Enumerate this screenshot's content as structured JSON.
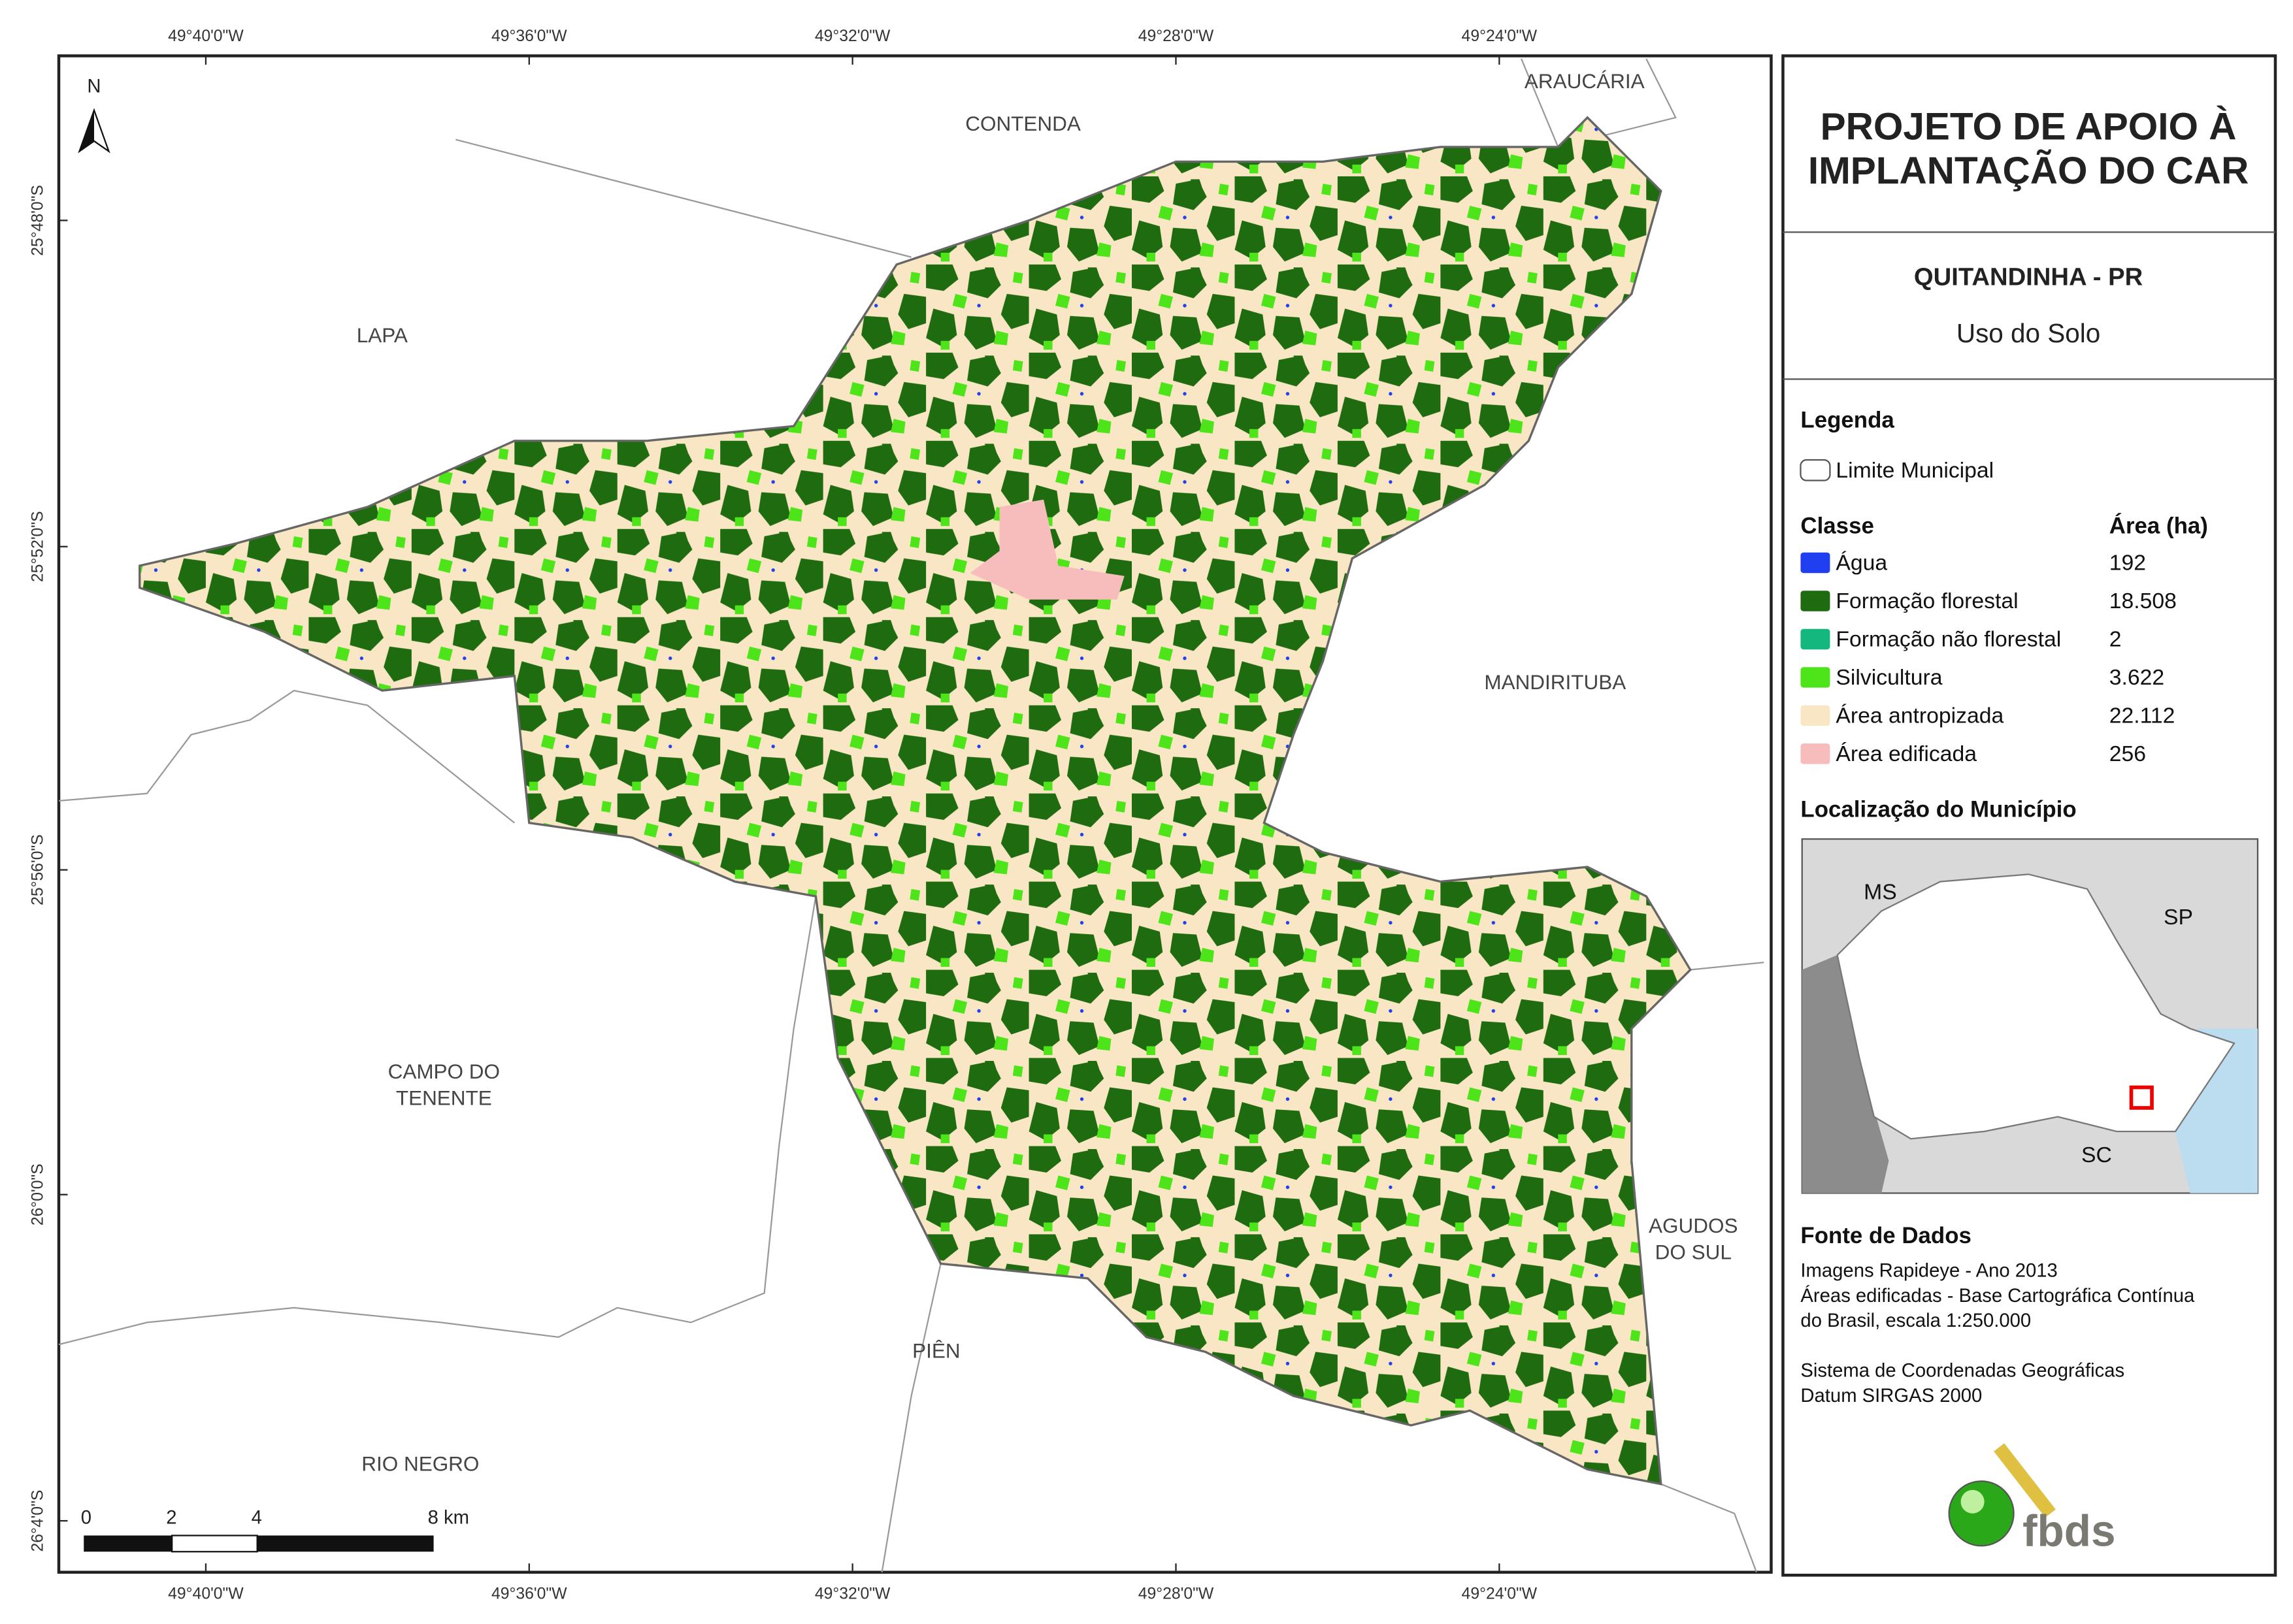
{
  "header": {
    "title_lines": [
      "PROJETO DE APOIO À",
      "IMPLANTAÇÃO DO CAR"
    ],
    "municipality": "QUITANDINHA - PR",
    "subtitle": "Uso do Solo"
  },
  "legend": {
    "title": "Legenda",
    "boundary": "Limite Municipal",
    "class_header": "Classe",
    "area_header": "Área (ha)",
    "classes": [
      {
        "name": "Água",
        "area": "192",
        "color": "#1f3ff0"
      },
      {
        "name": "Formação florestal",
        "area": "18.508",
        "color": "#1e6b10"
      },
      {
        "name": "Formação não florestal",
        "area": "2",
        "color": "#14b87f"
      },
      {
        "name": "Silvicultura",
        "area": "3.622",
        "color": "#4de41a"
      },
      {
        "name": "Área antropizada",
        "area": "22.112",
        "color": "#f8e6c4"
      },
      {
        "name": "Área edificada",
        "area": "256",
        "color": "#f7bcbc"
      }
    ]
  },
  "location": {
    "title": "Localização do Município",
    "labels": [
      "MS",
      "SP",
      "SC"
    ]
  },
  "sources": {
    "title": "Fonte de Dados",
    "lines": [
      "Imagens Rapideye - Ano 2013",
      "Áreas edificadas - Base Cartográfica Contínua",
      "do Brasil, escala 1:250.000",
      "",
      "Sistema de Coordenadas Geográficas",
      "Datum SIRGAS 2000"
    ]
  },
  "map": {
    "north": "N",
    "neighbors": [
      {
        "lines": [
          "CONTENDA"
        ]
      },
      {
        "lines": [
          "ARAUCÁRIA"
        ]
      },
      {
        "lines": [
          "LAPA"
        ]
      },
      {
        "lines": [
          "MANDIRITUBA"
        ]
      },
      {
        "lines": [
          "CAMPO DO",
          "TENENTE"
        ]
      },
      {
        "lines": [
          "AGUDOS",
          "DO SUL"
        ]
      },
      {
        "lines": [
          "PIÊN"
        ]
      },
      {
        "lines": [
          "RIO NEGRO"
        ]
      }
    ],
    "lon_labels": [
      "49°40'0\"W",
      "49°36'0\"W",
      "49°32'0\"W",
      "49°28'0\"W",
      "49°24'0\"W"
    ],
    "lat_labels": [
      "25°48'0\"S",
      "25°52'0\"S",
      "25°56'0\"S",
      "26°0'0\"S",
      "26°4'0\"S"
    ],
    "scale_labels": [
      "0",
      "2",
      "4",
      "8 km"
    ]
  },
  "logo": "fbds"
}
